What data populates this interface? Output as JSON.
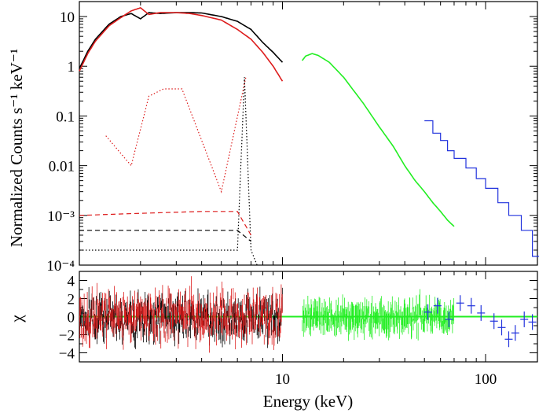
{
  "chart_data": [
    {
      "type": "line",
      "title": "",
      "xlabel": "Energy (keV)",
      "ylabel": "Normalized Counts s⁻¹ keV⁻¹",
      "x_scale": "log",
      "y_scale": "log",
      "xlim": [
        1.0,
        180
      ],
      "ylim": [
        0.0001,
        20
      ],
      "x_ticks": [
        10,
        100
      ],
      "x_tick_labels": [
        "10",
        "100"
      ],
      "y_ticks": [
        0.0001,
        0.001,
        0.01,
        0.1,
        1,
        10
      ],
      "y_tick_labels": [
        "10⁻⁴",
        "10⁻³",
        "0.01",
        "0.1",
        "1",
        "10"
      ],
      "colors": {
        "black": "#000000",
        "red": "#dd1c1c",
        "green": "#22ee22",
        "blue": "#2233dd"
      },
      "series": [
        {
          "name": "black spectrum",
          "color": "black",
          "style": "solid",
          "x": [
            1.0,
            1.1,
            1.2,
            1.4,
            1.6,
            1.8,
            2.0,
            2.2,
            2.5,
            3.0,
            3.5,
            4.0,
            5.0,
            6.0,
            7.0,
            8.0,
            9.0,
            10.0
          ],
          "y": [
            0.9,
            2.0,
            3.5,
            7.0,
            10.0,
            11.5,
            9.0,
            12.0,
            11.5,
            12.0,
            12.0,
            11.8,
            10.0,
            8.0,
            5.5,
            3.0,
            1.9,
            1.2
          ]
        },
        {
          "name": "red spectrum",
          "color": "red",
          "style": "solid",
          "x": [
            1.0,
            1.1,
            1.2,
            1.4,
            1.6,
            1.8,
            1.9,
            2.0,
            2.2,
            2.5,
            3.0,
            3.5,
            4.0,
            5.0,
            6.0,
            7.0,
            8.0,
            9.0,
            10.0
          ],
          "y": [
            0.8,
            1.8,
            3.2,
            6.5,
            9.5,
            13.0,
            14.0,
            15.0,
            11.0,
            12.0,
            12.0,
            11.5,
            10.5,
            8.5,
            5.5,
            3.5,
            1.9,
            1.0,
            0.5
          ]
        },
        {
          "name": "green spectrum",
          "color": "green",
          "style": "solid",
          "x": [
            12.5,
            13.0,
            14.0,
            15.0,
            17.0,
            20.0,
            25.0,
            30.0,
            35.0,
            40.0,
            45.0,
            50.0,
            55.0,
            60.0,
            65.0,
            70.0
          ],
          "y": [
            1.3,
            1.6,
            1.8,
            1.65,
            1.2,
            0.6,
            0.18,
            0.06,
            0.025,
            0.01,
            0.005,
            0.003,
            0.0018,
            0.0012,
            0.0008,
            0.0006
          ]
        },
        {
          "name": "blue spectrum",
          "color": "blue",
          "style": "steps",
          "x": [
            50,
            55,
            60,
            65,
            70,
            80,
            90,
            100,
            115,
            130,
            150,
            170
          ],
          "y": [
            0.08,
            0.045,
            0.032,
            0.02,
            0.014,
            0.009,
            0.0055,
            0.0035,
            0.0018,
            0.001,
            0.0005,
            0.00015
          ]
        },
        {
          "name": "black dotted model",
          "color": "black",
          "style": "dotted",
          "x": [
            1.0,
            2.0,
            3.0,
            4.0,
            5.0,
            6.0,
            6.5,
            7.0,
            7.5
          ],
          "y": [
            0.0002,
            0.0002,
            0.0002,
            0.0002,
            0.0002,
            0.0002,
            0.6,
            0.0002,
            0.0001
          ]
        },
        {
          "name": "red dotted lines",
          "color": "red",
          "style": "dotted",
          "x": [
            1.35,
            1.8,
            2.2,
            2.6,
            3.2,
            5.0,
            6.6
          ],
          "y": [
            0.04,
            0.01,
            0.25,
            0.35,
            0.35,
            0.003,
            0.6
          ]
        },
        {
          "name": "red dashed continuum",
          "color": "red",
          "style": "dashed",
          "x": [
            1.0,
            2.0,
            4.0,
            6.0,
            7.0
          ],
          "y": [
            0.001,
            0.0011,
            0.0012,
            0.0012,
            0.0004
          ]
        },
        {
          "name": "black dashed continuum",
          "color": "black",
          "style": "dashed",
          "x": [
            1.0,
            2.0,
            4.0,
            6.0,
            7.0
          ],
          "y": [
            0.0005,
            0.0005,
            0.0005,
            0.0005,
            0.0003
          ]
        }
      ]
    },
    {
      "type": "scatter",
      "title": "",
      "xlabel": "Energy (keV)",
      "ylabel": "χ",
      "x_scale": "log",
      "xlim": [
        1.0,
        180
      ],
      "ylim": [
        -5,
        5
      ],
      "y_ticks": [
        -4,
        -2,
        0,
        2,
        4
      ],
      "y_tick_labels": [
        "−4",
        "−2",
        "0",
        "2",
        "4"
      ],
      "zero_line": {
        "y": 0,
        "color": "green"
      },
      "series": [
        {
          "name": "black residuals",
          "color": "black",
          "x_range": [
            1.0,
            10.0
          ],
          "spread": 2.0
        },
        {
          "name": "red residuals",
          "color": "red",
          "x_range": [
            1.0,
            10.0
          ],
          "spread": 2.2
        },
        {
          "name": "green residuals",
          "color": "green",
          "x_range": [
            12.5,
            70
          ],
          "spread": 1.3
        },
        {
          "name": "blue residuals",
          "color": "blue",
          "x": [
            52,
            58,
            66,
            75,
            85,
            95,
            110,
            120,
            130,
            140,
            155,
            170
          ],
          "y": [
            0.5,
            1.2,
            -0.3,
            1.5,
            1.2,
            0.4,
            -0.5,
            -1.2,
            -2.5,
            -1.8,
            -0.3,
            -0.6
          ]
        }
      ]
    }
  ]
}
